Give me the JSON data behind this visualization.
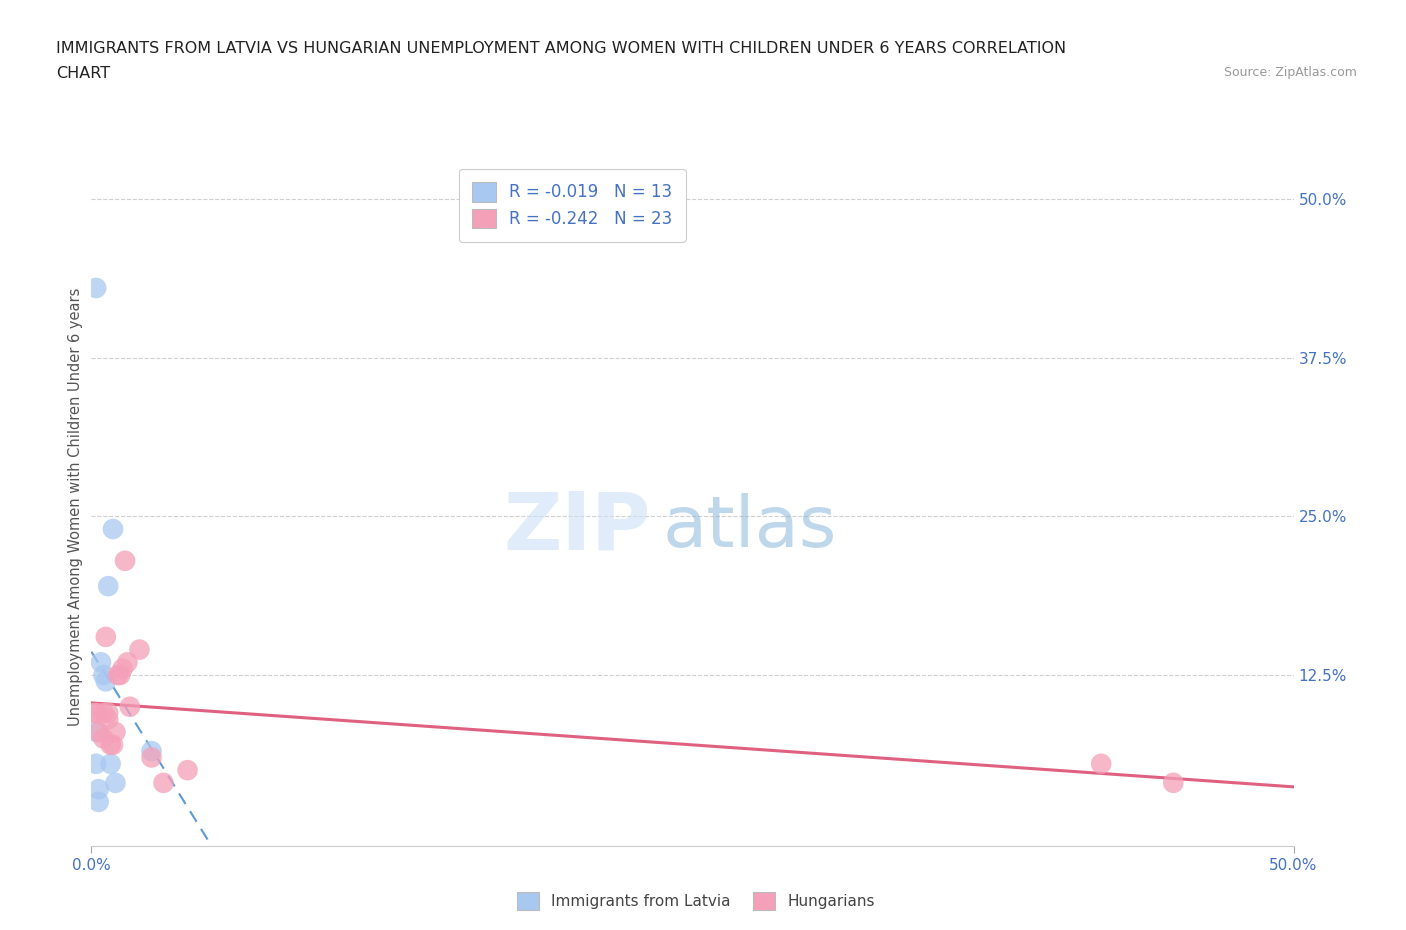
{
  "title_line1": "IMMIGRANTS FROM LATVIA VS HUNGARIAN UNEMPLOYMENT AMONG WOMEN WITH CHILDREN UNDER 6 YEARS CORRELATION",
  "title_line2": "CHART",
  "source": "Source: ZipAtlas.com",
  "ylabel": "Unemployment Among Women with Children Under 6 years",
  "right_yticks": [
    "50.0%",
    "37.5%",
    "25.0%",
    "12.5%"
  ],
  "right_ytick_vals": [
    0.5,
    0.375,
    0.25,
    0.125
  ],
  "legend_r1": "R = -0.019   N = 13",
  "legend_r2": "R = -0.242   N = 23",
  "blue_color": "#a8c8f0",
  "pink_color": "#f4a0b8",
  "trend_blue_color": "#5b9bd5",
  "trend_pink_color": "#e06080",
  "text_blue": "#4472c4",
  "background": "#ffffff",
  "scatter_blue_x": [
    0.002,
    0.002,
    0.002,
    0.003,
    0.003,
    0.004,
    0.005,
    0.006,
    0.007,
    0.008,
    0.009,
    0.01,
    0.025
  ],
  "scatter_blue_y": [
    0.43,
    0.08,
    0.055,
    0.035,
    0.025,
    0.135,
    0.125,
    0.12,
    0.195,
    0.055,
    0.24,
    0.04,
    0.065
  ],
  "scatter_pink_x": [
    0.001,
    0.002,
    0.003,
    0.005,
    0.005,
    0.006,
    0.007,
    0.007,
    0.008,
    0.009,
    0.01,
    0.011,
    0.012,
    0.013,
    0.014,
    0.015,
    0.016,
    0.02,
    0.025,
    0.03,
    0.04,
    0.42,
    0.45
  ],
  "scatter_pink_y": [
    0.095,
    0.095,
    0.08,
    0.075,
    0.095,
    0.155,
    0.09,
    0.095,
    0.07,
    0.07,
    0.08,
    0.125,
    0.125,
    0.13,
    0.215,
    0.135,
    0.1,
    0.145,
    0.06,
    0.04,
    0.05,
    0.055,
    0.04
  ],
  "xlim": [
    0.0,
    0.5
  ],
  "ylim": [
    -0.01,
    0.525
  ],
  "trend_blue_x_start": 0.0,
  "trend_blue_x_end": 0.5,
  "trend_pink_x_start": 0.0,
  "trend_pink_x_end": 0.5
}
